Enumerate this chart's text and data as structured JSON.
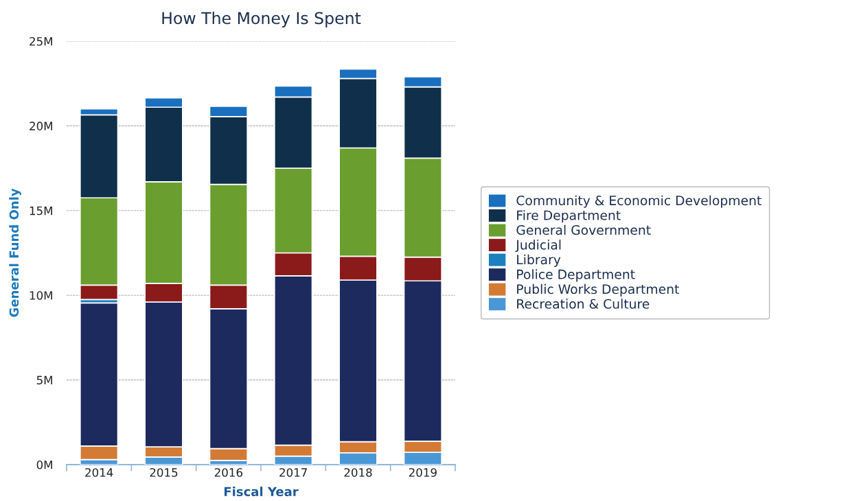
{
  "chart_data": {
    "type": "bar",
    "title": "How The Money Is Spent",
    "xlabel": "Fiscal Year",
    "ylabel": "General Fund Only",
    "categories": [
      "2014",
      "2015",
      "2016",
      "2017",
      "2018",
      "2019"
    ],
    "stacked": true,
    "ylim": [
      0,
      25
    ],
    "yticks": [
      {
        "value": 0,
        "label": "0M"
      },
      {
        "value": 5,
        "label": "5M"
      },
      {
        "value": 10,
        "label": "10M"
      },
      {
        "value": 15,
        "label": "15M"
      },
      {
        "value": 20,
        "label": "20M"
      },
      {
        "value": 25,
        "label": "25M"
      }
    ],
    "grid": "y",
    "legend": "right",
    "series": [
      {
        "name": "Recreation & Culture",
        "color": "#4a97d6",
        "values": [
          0.3,
          0.45,
          0.25,
          0.5,
          0.7,
          0.73
        ]
      },
      {
        "name": "Public Works Department",
        "color": "#d37b35",
        "values": [
          0.8,
          0.6,
          0.7,
          0.65,
          0.65,
          0.65
        ]
      },
      {
        "name": "Police Department",
        "color": "#1c2a5e",
        "values": [
          8.45,
          8.55,
          8.25,
          10.0,
          9.55,
          9.47
        ]
      },
      {
        "name": "Library",
        "color": "#1b7fc0",
        "values": [
          0.2,
          null,
          null,
          null,
          null,
          null
        ]
      },
      {
        "name": "Judicial",
        "color": "#8b1a1a",
        "values": [
          0.85,
          1.1,
          1.4,
          1.35,
          1.4,
          1.4
        ]
      },
      {
        "name": "General Government",
        "color": "#6a9e2e",
        "values": [
          5.15,
          6.0,
          5.95,
          5.0,
          6.4,
          5.85
        ]
      },
      {
        "name": "Fire Department",
        "color": "#0f2f4a",
        "values": [
          4.9,
          4.4,
          4.0,
          4.2,
          4.1,
          4.2
        ]
      },
      {
        "name": "Community & Economic Development",
        "color": "#1a6fbf",
        "values": [
          0.35,
          0.55,
          0.6,
          0.65,
          0.55,
          0.6
        ]
      }
    ]
  }
}
